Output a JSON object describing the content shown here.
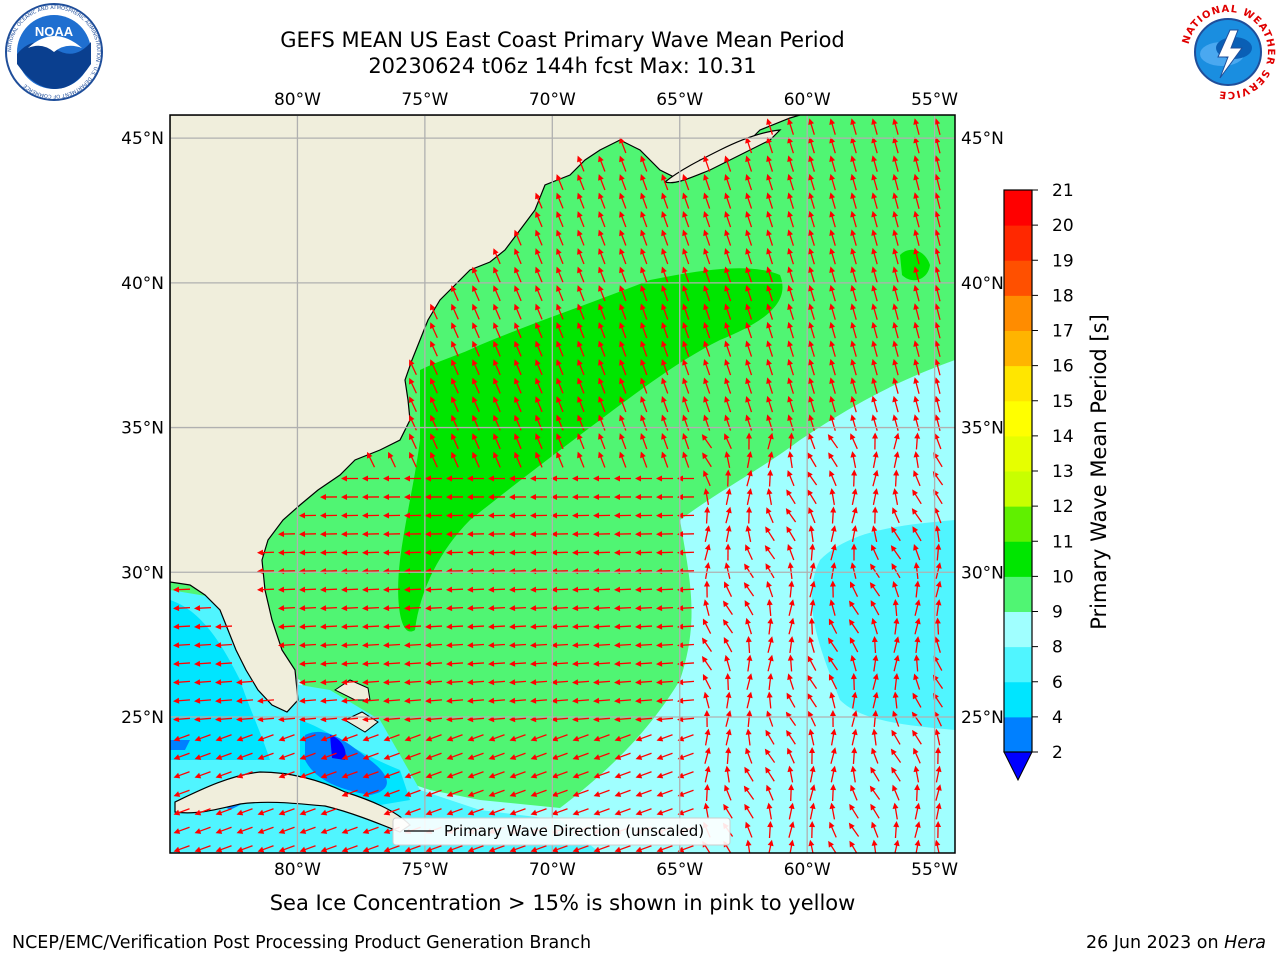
{
  "title_line1": "GEFS MEAN US East Coast Primary Wave Mean Period",
  "title_line2": "20230624 t06z 144h fcst   Max: 10.31",
  "subcaption": "Sea Ice Concentration > 15% is shown in pink to yellow",
  "footer_left": "NCEP/EMC/Verification Post Processing Product Generation Branch",
  "footer_right_date": "26 Jun 2023 on ",
  "footer_right_machine": "Hera",
  "legend_label": "Primary Wave Direction (unscaled)",
  "logos": {
    "noaa_text": "NOAA",
    "noaa_ring_text": "NATIONAL OCEANIC AND ATMOSPHERIC ADMINISTRATION · U.S. DEPARTMENT OF COMMERCE",
    "nws_ring_text": "NATIONAL WEATHER SERVICE"
  },
  "map": {
    "lon_range": [
      -85,
      -54.2
    ],
    "lat_range": [
      20.3,
      45.8
    ],
    "lon_ticks": [
      "80°W",
      "75°W",
      "70°W",
      "65°W",
      "60°W",
      "55°W"
    ],
    "lat_ticks": [
      "45°N",
      "40°N",
      "35°N",
      "30°N",
      "25°N"
    ],
    "land_color": "#f0eedc",
    "grid_color": "#b0b0b0",
    "arrow_color": "#ff0000"
  },
  "colorbar": {
    "label": "Primary Wave Mean Period [s]",
    "ticks": [
      "2",
      "4",
      "6",
      "8",
      "9",
      "10",
      "11",
      "12",
      "13",
      "14",
      "15",
      "16",
      "17",
      "18",
      "19",
      "20",
      "21"
    ],
    "colors": [
      "#0080ff",
      "#00e5ff",
      "#50f5ff",
      "#a0ffff",
      "#50f573",
      "#00e600",
      "#60f000",
      "#c8ff00",
      "#e6ff00",
      "#ffff00",
      "#ffe600",
      "#ffb400",
      "#ff8c00",
      "#ff5000",
      "#ff2800",
      "#ff0000"
    ],
    "extend_min_color": "#0000ff"
  }
}
